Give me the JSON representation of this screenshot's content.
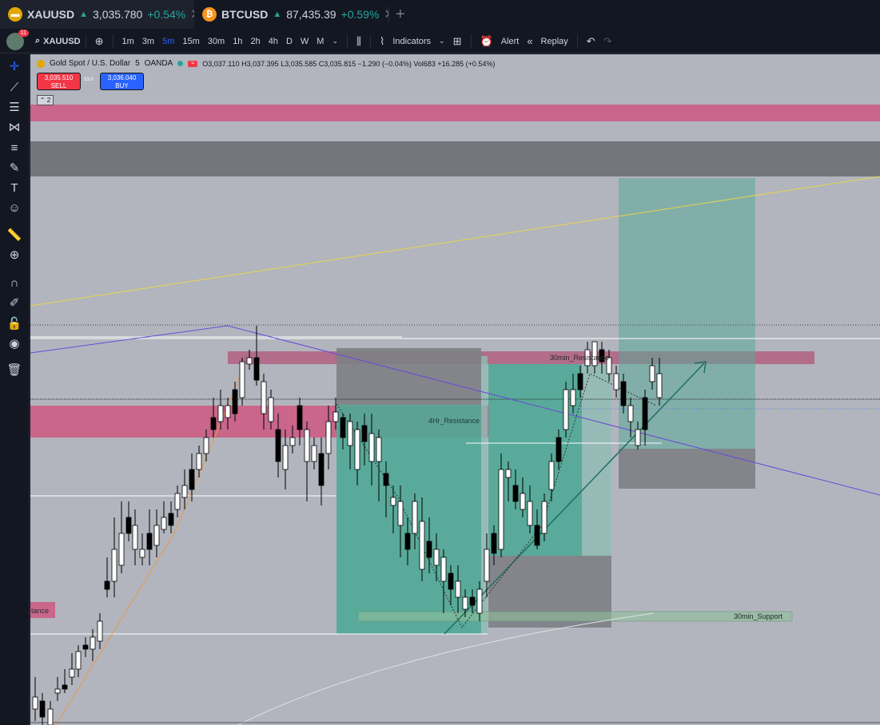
{
  "tabs": [
    {
      "symbol": "XAUUSD",
      "arrow": "▲",
      "price": "3,035.780",
      "change": "+0.54%",
      "icon": "gold-coin-icon",
      "color": "#e0a800"
    },
    {
      "symbol": "BTCUSD",
      "arrow": "▲",
      "price": "87,435.39",
      "change": "+0.59%",
      "icon": "bitcoin-icon",
      "color": "#f7931a"
    }
  ],
  "toolbar": {
    "badge": "11",
    "symbol": "XAUUSD",
    "timeframes": [
      "1m",
      "3m",
      "5m",
      "15m",
      "30m",
      "1h",
      "2h",
      "4h",
      "D",
      "W",
      "M"
    ],
    "selected_timeframe": "5m",
    "indicators_label": "Indicators",
    "alert_label": "Alert",
    "replay_label": "Replay"
  },
  "legend": {
    "name": "Gold Spot / U.S. Dollar",
    "interval": "5",
    "broker": "OANDA",
    "ohlc": "O3,037.110 H3,037.395 L3,035.585 C3,035.815 −1.290 (−0.04%) Vol683 +16.285 (+0.54%)",
    "sell_price": "3,035.510",
    "sell_label": "SELL",
    "buy_price": "3,036.040",
    "buy_label": "BUY",
    "spread": "53.0",
    "collapse": "2"
  },
  "labels": {
    "resistance_4h": "4Hr_Resistance",
    "resistance_30m": "30min_Resistance",
    "support_30m": "30min_Support",
    "left_tance": "tance"
  },
  "colors": {
    "chart_bg": "#b2b5be",
    "pink_zone": "#c9668a",
    "dark_zone": "#74767c",
    "teal_zone": "#5aa898",
    "bull": "#ffffff",
    "bear": "#000000"
  }
}
